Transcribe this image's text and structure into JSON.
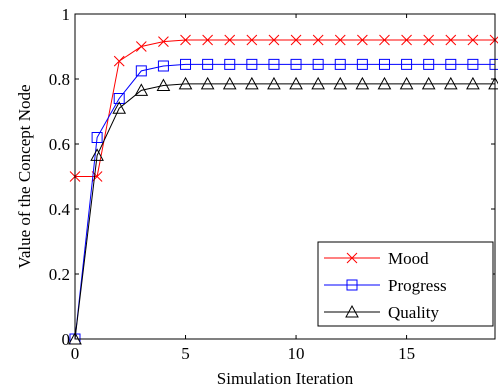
{
  "chart_data": {
    "type": "line",
    "xlabel": "Simulation Iteration",
    "ylabel": "Value of the Concept Node",
    "xlim": [
      0,
      19
    ],
    "ylim": [
      0,
      1
    ],
    "xticks": [
      "0",
      "5",
      "10",
      "15"
    ],
    "yticks": [
      "0",
      "0.2",
      "0.4",
      "0.6",
      "0.8",
      "1"
    ],
    "grid": false,
    "legend_position": "bottom-right",
    "x": [
      0,
      1,
      2,
      3,
      4,
      5,
      6,
      7,
      8,
      9,
      10,
      11,
      12,
      13,
      14,
      15,
      16,
      17,
      18,
      19
    ],
    "series": [
      {
        "name": "Mood",
        "color": "#ff0000",
        "marker": "x",
        "values": [
          0.5,
          0.5,
          0.855,
          0.9,
          0.915,
          0.92,
          0.92,
          0.92,
          0.92,
          0.92,
          0.92,
          0.92,
          0.92,
          0.92,
          0.92,
          0.92,
          0.92,
          0.92,
          0.92,
          0.92
        ]
      },
      {
        "name": "Progress",
        "color": "#0000ff",
        "marker": "square",
        "values": [
          0,
          0.62,
          0.74,
          0.825,
          0.84,
          0.845,
          0.845,
          0.845,
          0.845,
          0.845,
          0.845,
          0.845,
          0.845,
          0.845,
          0.845,
          0.845,
          0.845,
          0.845,
          0.845,
          0.845
        ]
      },
      {
        "name": "Quality",
        "color": "#000000",
        "marker": "triangle",
        "values": [
          0,
          0.565,
          0.71,
          0.765,
          0.78,
          0.785,
          0.785,
          0.785,
          0.785,
          0.785,
          0.785,
          0.785,
          0.785,
          0.785,
          0.785,
          0.785,
          0.785,
          0.785,
          0.785,
          0.785
        ]
      }
    ]
  }
}
